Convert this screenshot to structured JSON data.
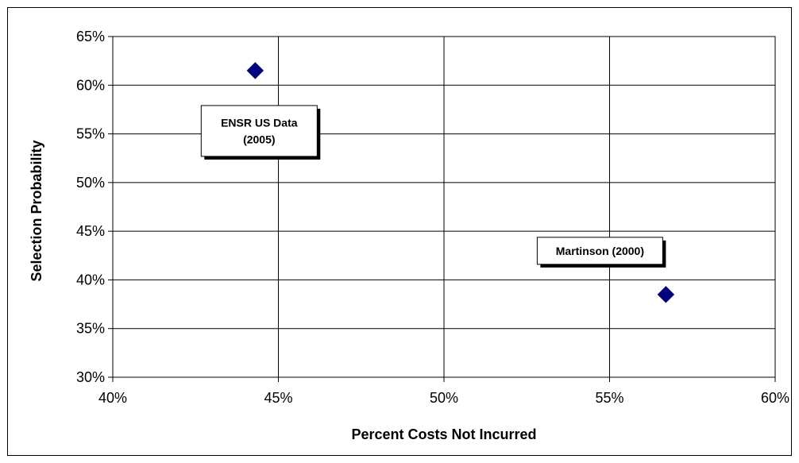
{
  "chart_data": {
    "type": "scatter",
    "title": "",
    "xlabel": "Percent Costs Not Incurred",
    "ylabel": "Selection Probability",
    "xlim": [
      0.4,
      0.6
    ],
    "ylim": [
      0.3,
      0.65
    ],
    "x_ticks": [
      0.4,
      0.45,
      0.5,
      0.55,
      0.6
    ],
    "y_ticks": [
      0.3,
      0.35,
      0.4,
      0.45,
      0.5,
      0.55,
      0.6,
      0.65
    ],
    "x_tick_labels": [
      "40%",
      "45%",
      "50%",
      "55%",
      "60%"
    ],
    "y_tick_labels": [
      "30%",
      "35%",
      "40%",
      "45%",
      "50%",
      "55%",
      "60%",
      "65%"
    ],
    "grid": true,
    "legend": "none",
    "marker": "diamond",
    "marker_color": "#000080",
    "points": [
      {
        "x": 0.443,
        "y": 0.615,
        "label_lines": [
          "ENSR US Data",
          "(2005)"
        ]
      },
      {
        "x": 0.567,
        "y": 0.385,
        "label_lines": [
          "Martinson (2000)"
        ]
      }
    ]
  }
}
